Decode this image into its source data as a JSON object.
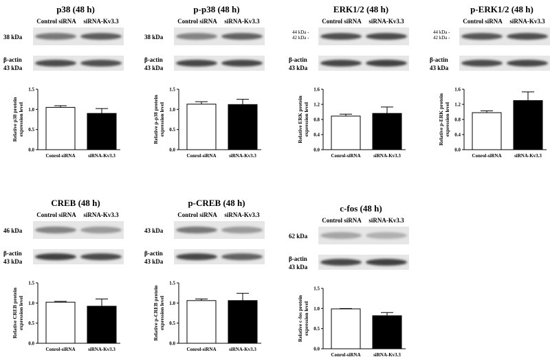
{
  "figure": {
    "lane_labels": [
      "Control siRNA",
      "siRNA-Kv3.3"
    ],
    "beta_actin_label": "β-actin",
    "beta_actin_kda": "43 kDa",
    "panels": [
      {
        "title": "p38 (48 h)",
        "target_kda": [
          "38 kDa"
        ],
        "bands": {
          "target": [
            0.6,
            0.72
          ],
          "actin": [
            0.8,
            0.78
          ]
        },
        "chart_data": {
          "type": "bar",
          "categories": [
            "Conrol-siRNA",
            "siRNA-Kv3.3"
          ],
          "values": [
            1.05,
            0.9
          ],
          "errors": [
            0.04,
            0.12
          ],
          "bar_fills": [
            "#ffffff",
            "#000000"
          ],
          "ylabel": [
            "Relative p38 protein",
            "expression level"
          ],
          "ylim": [
            0,
            1.5
          ],
          "yticks": [
            "0.0",
            "0.5",
            "1.0",
            "1.5"
          ]
        }
      },
      {
        "title": "p-p38 (48 h)",
        "target_kda": [
          "38 kDa"
        ],
        "bands": {
          "target": [
            0.55,
            0.7
          ],
          "actin": [
            0.82,
            0.82
          ]
        },
        "chart_data": {
          "type": "bar",
          "categories": [
            "Conrol-siRNA",
            "siRNA-Kv3.3"
          ],
          "values": [
            1.13,
            1.12
          ],
          "errors": [
            0.06,
            0.13
          ],
          "bar_fills": [
            "#ffffff",
            "#000000"
          ],
          "ylabel": [
            "Relative p-p38 protein",
            "expression level"
          ],
          "ylim": [
            0,
            1.5
          ],
          "yticks": [
            "0.0",
            "0.5",
            "1.0",
            "1.5"
          ]
        }
      },
      {
        "title": "ERK1/2 (48 h)",
        "target_kda": [
          "44 kDa -",
          "42 kDa -"
        ],
        "bands": {
          "target": [
            0.78,
            0.8
          ],
          "actin": [
            0.82,
            0.84
          ]
        },
        "chart_data": {
          "type": "bar",
          "categories": [
            "Conrol-siRNA",
            "siRNA-Kv3.3"
          ],
          "values": [
            0.89,
            0.96
          ],
          "errors": [
            0.05,
            0.17
          ],
          "bar_fills": [
            "#ffffff",
            "#000000"
          ],
          "ylabel": [
            "Relative ERK protein",
            "expression level"
          ],
          "ylim": [
            0,
            1.6
          ],
          "yticks": [
            "0.0",
            "0.4",
            "0.8",
            "1.2",
            "1.6"
          ]
        }
      },
      {
        "title": "p-ERK1/2 (48 h)",
        "target_kda": [
          "44 kDa -",
          "42 kDa -"
        ],
        "bands": {
          "target": [
            0.75,
            0.78
          ],
          "actin": [
            0.8,
            0.82
          ]
        },
        "chart_data": {
          "type": "bar",
          "categories": [
            "Conrol-siRNA",
            "siRNA-Kv3.3"
          ],
          "values": [
            0.98,
            1.3
          ],
          "errors": [
            0.05,
            0.23
          ],
          "bar_fills": [
            "#ffffff",
            "#000000"
          ],
          "ylabel": [
            "Relative p-ERK protein",
            "expression level"
          ],
          "ylim": [
            0,
            1.6
          ],
          "yticks": [
            "0.0",
            "0.4",
            "0.8",
            "1.2",
            "1.6"
          ]
        }
      },
      {
        "title": "CREB (48 h)",
        "target_kda": [
          "46 kDa"
        ],
        "bands": {
          "target": [
            0.55,
            0.45
          ],
          "actin": [
            0.85,
            0.8
          ]
        },
        "chart_data": {
          "type": "bar",
          "categories": [
            "Conrol-siRNA",
            "siRNA-Kv3.3"
          ],
          "values": [
            1.02,
            0.92
          ],
          "errors": [
            0.02,
            0.18
          ],
          "bar_fills": [
            "#ffffff",
            "#000000"
          ],
          "ylabel": [
            "Relative CREB protein",
            "expression level"
          ],
          "ylim": [
            0,
            1.5
          ],
          "yticks": [
            "0.0",
            "0.5",
            "1.0",
            "1.5"
          ]
        }
      },
      {
        "title": "p-CREB (48 h)",
        "target_kda": [
          "43 kDa"
        ],
        "bands": {
          "target": [
            0.6,
            0.45
          ],
          "actin": [
            0.82,
            0.7
          ]
        },
        "chart_data": {
          "type": "bar",
          "categories": [
            "Conrol-siRNA",
            "siRNA-Kv3.3"
          ],
          "values": [
            1.06,
            1.06
          ],
          "errors": [
            0.04,
            0.18
          ],
          "bar_fills": [
            "#ffffff",
            "#000000"
          ],
          "ylabel": [
            "Relative p-CREB protein",
            "expression level"
          ],
          "ylim": [
            0,
            1.5
          ],
          "yticks": [
            "0.0",
            "0.5",
            "1.0",
            "1.5"
          ]
        }
      },
      {
        "title": "c-fos (48 h)",
        "target_kda": [
          "62 kDa"
        ],
        "bands": {
          "target": [
            0.4,
            0.35
          ],
          "actin": [
            0.82,
            0.85
          ]
        },
        "chart_data": {
          "type": "bar",
          "categories": [
            "Conrol-siRNA",
            "siRNA-Kv3.3"
          ],
          "values": [
            0.99,
            0.82
          ],
          "errors": [
            0.01,
            0.08
          ],
          "bar_fills": [
            "#ffffff",
            "#000000"
          ],
          "ylabel": [
            "Relative c-fos protein",
            "expression level"
          ],
          "ylim": [
            0,
            1.5
          ],
          "yticks": [
            "0.0",
            "0.5",
            "1.0",
            "1.5"
          ]
        }
      }
    ]
  }
}
